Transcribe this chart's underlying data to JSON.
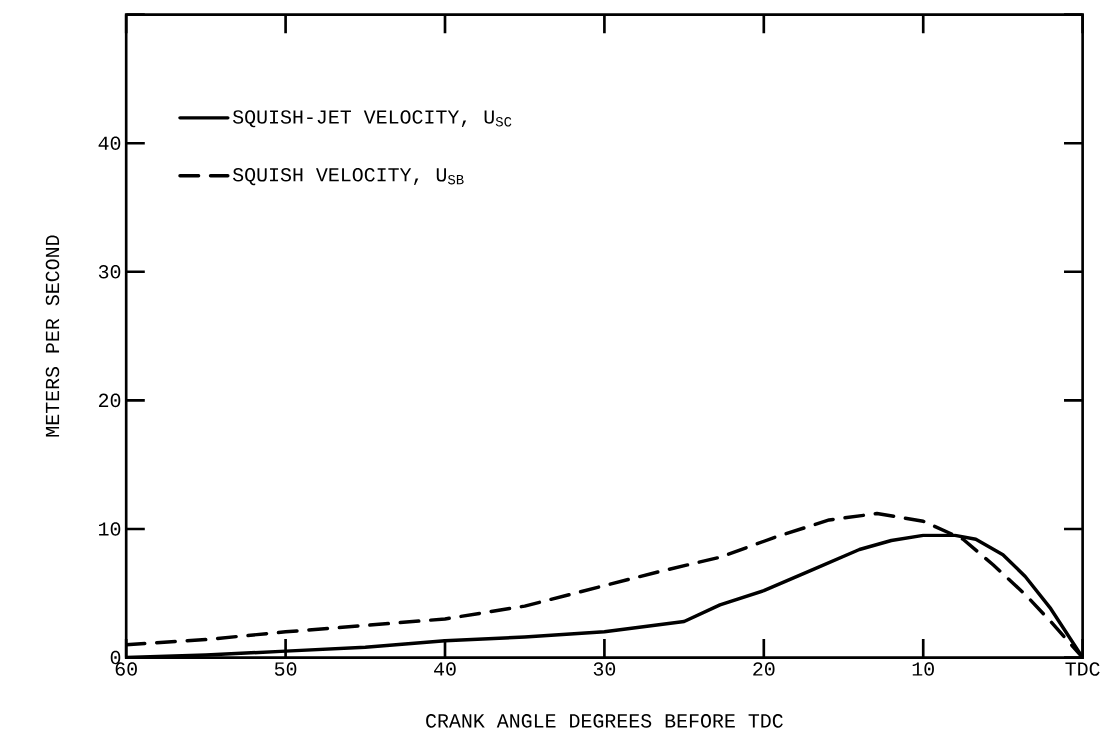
{
  "chart_data": {
    "type": "line",
    "xlabel": "CRANK ANGLE DEGREES BEFORE TDC",
    "ylabel": "METERS PER SECOND",
    "xlim": [
      60,
      0
    ],
    "ylim": [
      0,
      50
    ],
    "xticks": [
      60,
      50,
      40,
      30,
      20,
      10,
      {
        "value": 0,
        "label": "TDC"
      }
    ],
    "yticks": [
      0,
      10,
      20,
      30,
      40,
      {
        "value": 50,
        "label": null
      }
    ],
    "legend": "top left",
    "grid": false,
    "marker": "none",
    "series": [
      {
        "name": "SQUISH-JET VELOCITY, U$_{SC}$",
        "color": "#000000",
        "line_style": "solid",
        "x": [
          60,
          55,
          50,
          45,
          40,
          35,
          30,
          25,
          22.75,
          20,
          17,
          14,
          12,
          10,
          8,
          6.7,
          5,
          3.6,
          2,
          0
        ],
        "values": [
          0,
          0.2,
          0.5,
          0.8,
          1.3,
          1.6,
          2.0,
          2.8,
          4.1,
          5.2,
          6.8,
          8.4,
          9.1,
          9.5,
          9.5,
          9.2,
          8.0,
          6.3,
          3.8,
          0
        ]
      },
      {
        "name": "SQUISH VELOCITY, U$_{SB}$",
        "color": "#000000",
        "line_style": "dashed",
        "x": [
          60,
          55,
          50,
          45,
          40,
          35,
          30.3,
          26.5,
          22.75,
          19.2,
          15.9,
          12.9,
          10,
          7.5,
          5.6,
          3.6,
          2,
          0
        ],
        "values": [
          1.0,
          1.4,
          2.0,
          2.5,
          3.0,
          4.0,
          5.5,
          6.7,
          7.8,
          9.4,
          10.7,
          11.2,
          10.6,
          9.2,
          7.2,
          4.9,
          2.8,
          0
        ]
      }
    ]
  }
}
